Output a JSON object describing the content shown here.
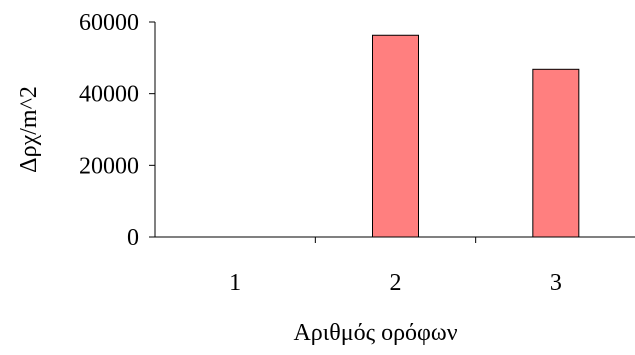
{
  "chart_data": {
    "type": "bar",
    "categories": [
      "1",
      "2",
      "3"
    ],
    "values": [
      0,
      56300,
      46800
    ],
    "ylabel": "Δρχ/m^2",
    "xlabel": "Αριθμός ορόφων",
    "ylim": [
      0,
      60000
    ],
    "yticks": [
      "0",
      "20000",
      "40000",
      "60000"
    ],
    "grid": false,
    "legend": "none",
    "colors": {
      "bar_fill": "#ff7f7f",
      "bar_stroke": "#000000"
    }
  }
}
